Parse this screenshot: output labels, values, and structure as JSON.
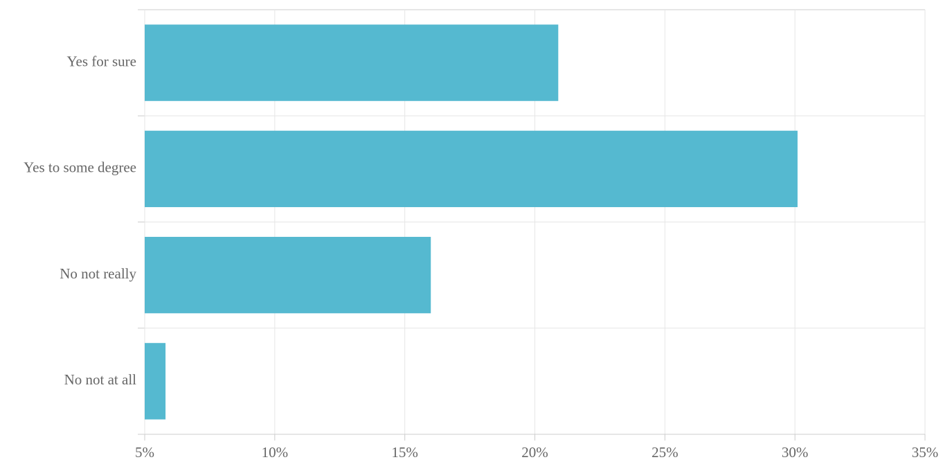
{
  "chart_data": {
    "type": "bar",
    "orientation": "horizontal",
    "categories": [
      "Yes for sure",
      "Yes to some degree",
      "No not really",
      "No not at all"
    ],
    "values": [
      20.9,
      30.1,
      16.0,
      5.8
    ],
    "color": "#55b9d0",
    "xlim": [
      5,
      35
    ],
    "xticks": [
      {
        "value": 5,
        "label": "5%"
      },
      {
        "value": 10,
        "label": "10%"
      },
      {
        "value": 15,
        "label": "15%"
      },
      {
        "value": 20,
        "label": "20%"
      },
      {
        "value": 25,
        "label": "25%"
      },
      {
        "value": 30,
        "label": "30%"
      },
      {
        "value": 35,
        "label": "35%"
      }
    ],
    "grid": true
  }
}
